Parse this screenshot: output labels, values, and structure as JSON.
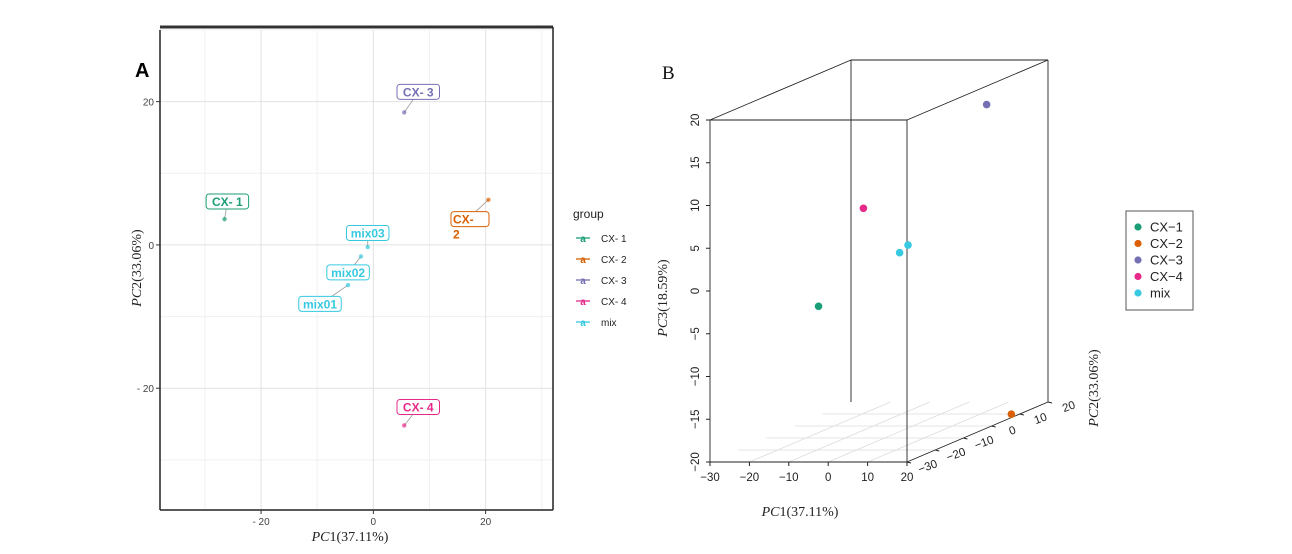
{
  "chart_data": [
    {
      "type": "scatter",
      "panel_label": "A",
      "xlabel_prefix": "PC",
      "xlabel_suffix": "1(37.11%)",
      "ylabel_prefix": "PC",
      "ylabel_suffix": "2(33.06%)",
      "xlim": [
        -38,
        32
      ],
      "ylim": [
        -37,
        30
      ],
      "x_ticks": [
        -20,
        0,
        20
      ],
      "x_tick_labels": [
        "- 20",
        "0",
        "20"
      ],
      "y_ticks": [
        20,
        0,
        -20
      ],
      "y_tick_labels": [
        "20",
        "0",
        "- 20"
      ],
      "grid": true,
      "legend_title": "group",
      "legend_placement": "right",
      "series": [
        {
          "name": "CX- 1",
          "color": "#1b9e77",
          "points": [
            {
              "x": -26.5,
              "y": 3.6,
              "label": "CX- 1",
              "label_x": -26,
              "label_y": 6
            }
          ]
        },
        {
          "name": "CX- 2",
          "color": "#d95f02",
          "points": [
            {
              "x": 20.5,
              "y": 6.3,
              "label": "CX- 2",
              "label_x": 16.5,
              "label_y": 3.4
            }
          ]
        },
        {
          "name": "CX- 3",
          "color": "#7570b3",
          "points": [
            {
              "x": 5.5,
              "y": 18.5,
              "label": "CX- 3",
              "label_x": 8,
              "label_y": 21.3
            }
          ]
        },
        {
          "name": "CX- 4",
          "color": "#e7298a",
          "points": [
            {
              "x": 5.5,
              "y": -25.2,
              "label": "CX- 4",
              "label_x": 8,
              "label_y": -22.7
            }
          ]
        },
        {
          "name": "mix",
          "color": "#36c9e0",
          "points": [
            {
              "x": -1,
              "y": -0.3,
              "label": "mix03",
              "label_x": -1,
              "label_y": 1.6
            },
            {
              "x": -2.2,
              "y": -1.6,
              "label": "mix02",
              "label_x": -4.5,
              "label_y": -3.9
            },
            {
              "x": -4.5,
              "y": -5.6,
              "label": "mix01",
              "label_x": -9.5,
              "label_y": -8.3
            }
          ]
        }
      ]
    },
    {
      "type": "scatter",
      "subtype": "3d",
      "panel_label": "B",
      "xlabel_prefix": "PC",
      "xlabel_suffix": "1(37.11%)",
      "ylabel_prefix": "PC",
      "ylabel_suffix": "2(33.06%)",
      "zlabel_prefix": "PC",
      "zlabel_suffix": "3(18.59%)",
      "x_ticks": [
        -30,
        -20,
        -10,
        0,
        10,
        20
      ],
      "x_tick_labels": [
        "−30",
        "−20",
        "−10",
        "0",
        "10",
        "20"
      ],
      "y_ticks": [
        -30,
        -20,
        -10,
        0,
        10,
        20
      ],
      "y_tick_labels": [
        "−30",
        "−20",
        "−10",
        "0",
        "10",
        "20"
      ],
      "z_ticks": [
        -20,
        -15,
        -10,
        -5,
        0,
        5,
        10,
        15,
        20
      ],
      "z_tick_labels": [
        "−20",
        "−15",
        "−10",
        "−5",
        "0",
        "5",
        "10",
        "15",
        "20"
      ],
      "legend_placement": "right",
      "legend": [
        {
          "name": "CX−1",
          "color": "#1b9e77"
        },
        {
          "name": "CX−2",
          "color": "#d95f02"
        },
        {
          "name": "CX−3",
          "color": "#7570b3"
        },
        {
          "name": "CX−4",
          "color": "#e7298a"
        },
        {
          "name": "mix",
          "color": "#36c9e0"
        }
      ],
      "points": [
        {
          "series": "CX−1",
          "x": -26.5,
          "y": 3.6,
          "z": -6.5
        },
        {
          "series": "CX−2",
          "x": 20.5,
          "y": 6.3,
          "z": -19.5
        },
        {
          "series": "CX−3",
          "x": 5.5,
          "y": 18.5,
          "z": 15
        },
        {
          "series": "CX−4",
          "x": 5.5,
          "y": -25.2,
          "z": 9
        },
        {
          "series": "mix",
          "x": -1,
          "y": -0.3,
          "z": 1.2
        },
        {
          "series": "mix",
          "x": -2.2,
          "y": -1.6,
          "z": 0.5
        }
      ]
    }
  ]
}
